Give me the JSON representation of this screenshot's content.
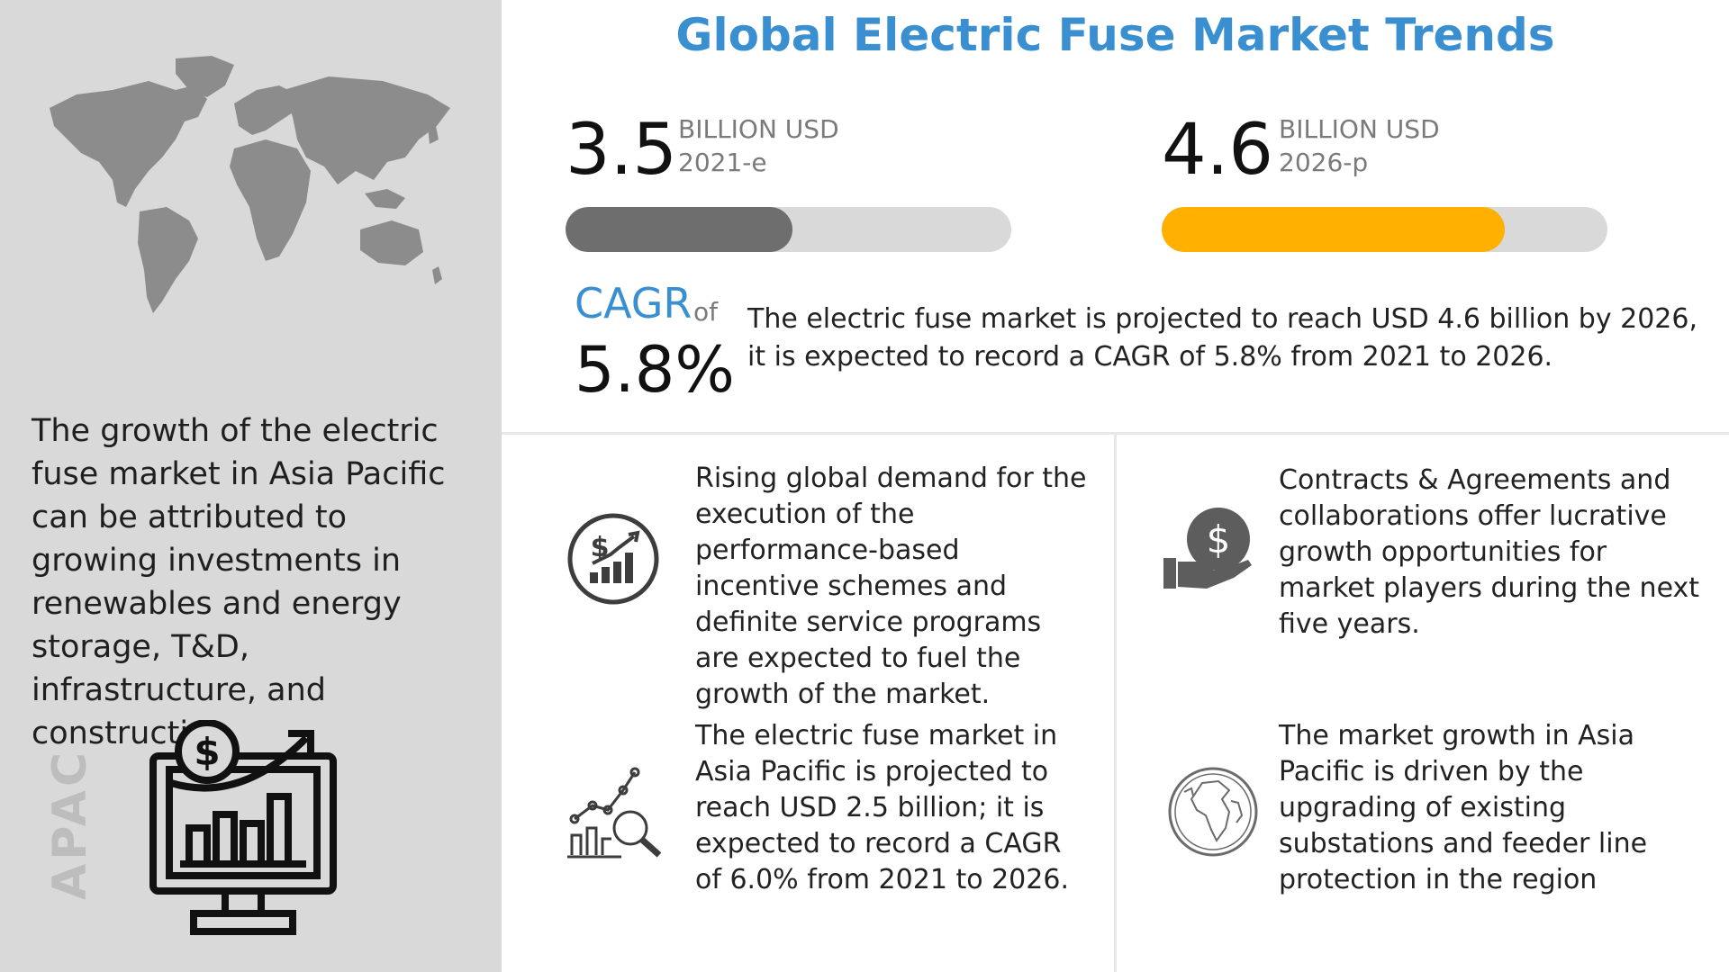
{
  "title": "Global Electric Fuse Market Trends",
  "metric_2021": {
    "value": "3.5",
    "unit": "BILLION USD",
    "year": "2021-e",
    "progress_fraction": 0.51,
    "color": "#6e6e6e"
  },
  "metric_2026": {
    "value": "4.6",
    "unit": "BILLION USD",
    "year": "2026-p",
    "progress_fraction": 0.77,
    "color": "#ffb000"
  },
  "cagr": {
    "label": "CAGR",
    "of": "of",
    "value": "5.8%",
    "description": "The electric fuse market is projected to reach USD 4.6 billion by 2026, it is expected to record a CAGR of 5.8% from 2021 to 2026."
  },
  "left_panel": {
    "text": "The growth of the electric fuse market in Asia Pacific can be attributed to growing investments in renewables and energy storage, T&D, infrastructure, and construction.",
    "region_label": "APAC"
  },
  "features": [
    {
      "icon": "dollar-growth-chart-icon",
      "text": "Rising global demand for the execution of the performance-based incentive schemes and definite service programs are expected to fuel the growth of the market."
    },
    {
      "icon": "hand-dollar-icon",
      "text": "Contracts & Agreements and collaborations offer lucrative growth opportunities for market players during the next five years."
    },
    {
      "icon": "analytics-magnifier-icon",
      "text": "The electric fuse market in Asia Pacific is projected to reach USD 2.5 billion; it is expected to record a CAGR of 6.0% from 2021 to 2026."
    },
    {
      "icon": "globe-icon",
      "text": "The market growth in Asia Pacific is driven by the upgrading of existing substations and feeder line protection in the region"
    }
  ],
  "colors": {
    "accent_blue": "#3a8fd0",
    "panel_gray": "#d9d9d9",
    "bar_track": "#d9d9d9"
  }
}
